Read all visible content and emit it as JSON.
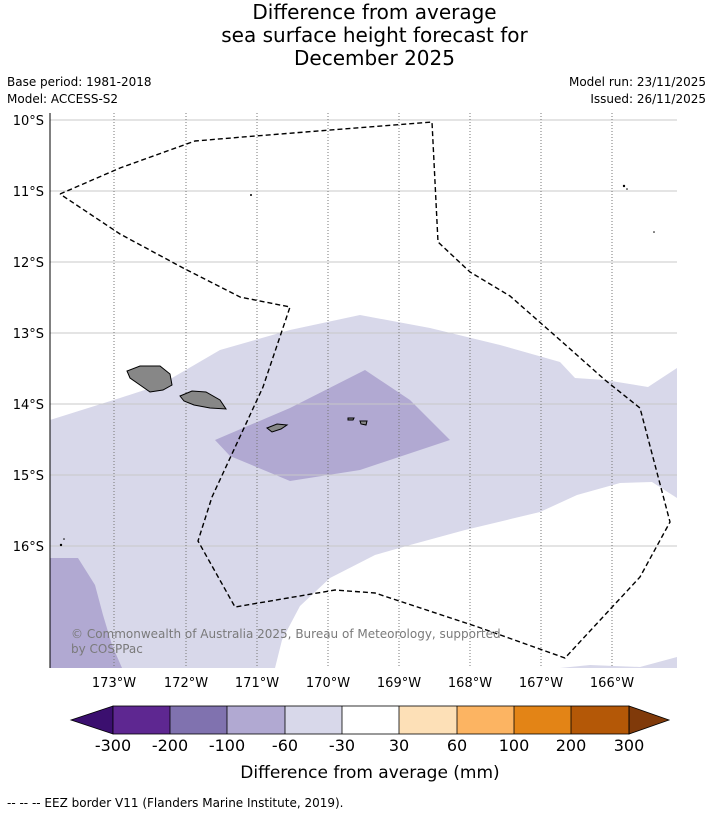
{
  "title": {
    "line1": "Difference from average",
    "line2": "sea surface height forecast for",
    "line3": "December 2025"
  },
  "meta": {
    "base_period": "Base period: 1981-2018",
    "model": "Model: ACCESS-S2",
    "model_run": "Model run: 23/11/2025",
    "issued": "Issued: 26/11/2025"
  },
  "map": {
    "lat_labels": [
      "10°S",
      "11°S",
      "12°S",
      "13°S",
      "14°S",
      "15°S",
      "16°S"
    ],
    "lon_labels": [
      "173°W",
      "172°W",
      "171°W",
      "170°W",
      "169°W",
      "168°W",
      "167°W",
      "166°W"
    ],
    "copyright_line1": "© Commonwealth of Australia 2025, Bureau of Meteorology, supported",
    "copyright_line2": "by COSPPac",
    "colors": {
      "fill_light": "#d8d8ea",
      "fill_mid": "#b1a9d2",
      "land": "#878787",
      "eez": "#000000"
    }
  },
  "colorbar": {
    "tick_labels": [
      "-300",
      "-200",
      "-100",
      "-60",
      "-30",
      "30",
      "60",
      "100",
      "200",
      "300"
    ],
    "label": "Difference from average (mm)",
    "colors": [
      "#3b0f6f",
      "#5e2791",
      "#8072af",
      "#b1a9d2",
      "#d8d8ea",
      "#ffffff",
      "#fde0b7",
      "#fcb462",
      "#e38416",
      "#b45807",
      "#803a0a"
    ]
  },
  "footnote": "-- -- -- EEZ border V11 (Flanders Marine Institute, 2019)."
}
